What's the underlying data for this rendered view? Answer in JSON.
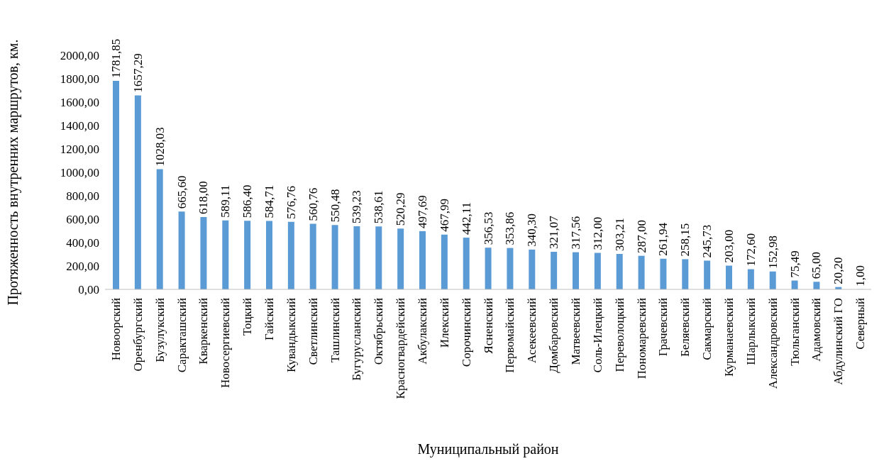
{
  "chart_data": {
    "type": "bar",
    "ylabel": "Протяженность внутренних маршрутов, км.",
    "xlabel": "Муниципальный район",
    "categories": [
      "Новоорский",
      "Оренбургский",
      "Бузулукский",
      "Саракташский",
      "Кваркенский",
      "Новосергиевский",
      "Тоцкий",
      "Гайский",
      "Кувандыкский",
      "Светлинский",
      "Ташлинский",
      "Бугурусланский",
      "Октябрьский",
      "Красногвардейский",
      "Акбулакский",
      "Илекский",
      "Сорочинский",
      "Ясненский",
      "Первомайский",
      "Асекеевский",
      "Домбаровский",
      "Матвеевский",
      "Соль-Илецкий",
      "Переволоцкий",
      "Пономаревский",
      "Грачевский",
      "Беляевский",
      "Сакмарский",
      "Курманаевский",
      "Шарлыкский",
      "Александровский",
      "Тюльганский",
      "Адамовский",
      "Абдулинский ГО",
      "Северный"
    ],
    "values": [
      1781.85,
      1657.29,
      1028.03,
      665.6,
      618.0,
      589.11,
      586.4,
      584.71,
      576.76,
      560.76,
      550.48,
      539.23,
      538.61,
      520.29,
      497.69,
      467.99,
      442.11,
      356.53,
      353.86,
      340.3,
      321.07,
      317.56,
      312.0,
      303.21,
      287.0,
      261.94,
      258.15,
      245.73,
      203.0,
      172.6,
      152.98,
      75.49,
      65.0,
      20.2,
      1.0
    ],
    "value_labels": [
      "1781,85",
      "1657,29",
      "1028,03",
      "665,60",
      "618,00",
      "589,11",
      "586,40",
      "584,71",
      "576,76",
      "560,76",
      "550,48",
      "539,23",
      "538,61",
      "520,29",
      "497,69",
      "467,99",
      "442,11",
      "356,53",
      "353,86",
      "340,30",
      "321,07",
      "317,56",
      "312,00",
      "303,21",
      "287,00",
      "261,94",
      "258,15",
      "245,73",
      "203,00",
      "172,60",
      "152,98",
      "75,49",
      "65,00",
      "20,20",
      "1,00"
    ],
    "color": "#5b9bd5",
    "ylim": [
      0,
      2000
    ],
    "yticks": [
      {
        "value": 0,
        "label": "0,00"
      },
      {
        "value": 200,
        "label": "200,00"
      },
      {
        "value": 400,
        "label": "400,00"
      },
      {
        "value": 600,
        "label": "600,00"
      },
      {
        "value": 800,
        "label": "800,00"
      },
      {
        "value": 1000,
        "label": "1000,00"
      },
      {
        "value": 1200,
        "label": "1200,00"
      },
      {
        "value": 1400,
        "label": "1400,00"
      },
      {
        "value": 1600,
        "label": "1600,00"
      },
      {
        "value": 1800,
        "label": "1800,00"
      },
      {
        "value": 2000,
        "label": "2000,00"
      }
    ],
    "grid": false,
    "legend": false
  }
}
